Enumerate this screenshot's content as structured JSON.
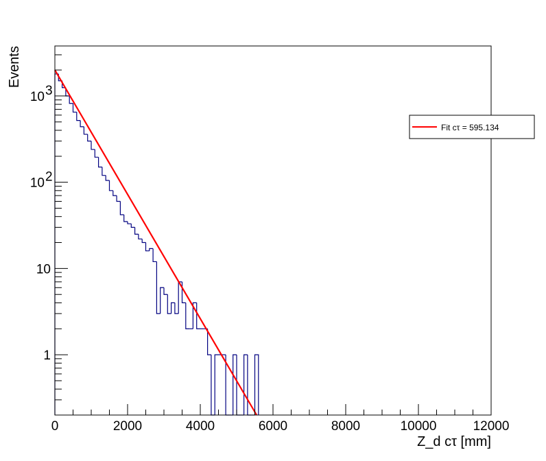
{
  "chart_data": {
    "type": "step",
    "title": "",
    "xlabel": "Z_d cτ [mm]",
    "ylabel": "Events",
    "xlim": [
      0,
      12000
    ],
    "ylim": [
      0.2,
      3800
    ],
    "yscale": "log",
    "grid": false,
    "x_ticks": [
      0,
      2000,
      4000,
      6000,
      8000,
      10000,
      12000
    ],
    "x_tick_labels": [
      "0",
      "2000",
      "4000",
      "6000",
      "8000",
      "10000",
      "12000"
    ],
    "y_ticks": [
      1,
      10,
      100,
      1000
    ],
    "y_tick_labels": [
      {
        "base": "1",
        "exp": ""
      },
      {
        "base": "10",
        "exp": ""
      },
      {
        "base": "10",
        "exp": "2"
      },
      {
        "base": "10",
        "exp": "3"
      }
    ],
    "histogram": {
      "color": "#000080",
      "bin_width": 100,
      "edges_start": 0,
      "counts": [
        1800,
        1500,
        1250,
        1000,
        820,
        650,
        520,
        440,
        360,
        300,
        240,
        195,
        150,
        120,
        105,
        80,
        70,
        60,
        42,
        35,
        33,
        30,
        25,
        22,
        20,
        16,
        17,
        12,
        3,
        6,
        5,
        3,
        4,
        3,
        7,
        4,
        2,
        2,
        4,
        2,
        2,
        2,
        1,
        0,
        1,
        1,
        1,
        0,
        0,
        1,
        0,
        0,
        1,
        0,
        0,
        1
      ]
    },
    "series": [
      {
        "name": "Fit cτ = 595.134",
        "type": "line",
        "color": "#ff0000",
        "x": [
          0,
          5550
        ],
        "y": [
          2000,
          0.2
        ]
      }
    ],
    "legend": {
      "position": "top-right",
      "entries": [
        "Fit cτ = 595.134"
      ]
    }
  }
}
